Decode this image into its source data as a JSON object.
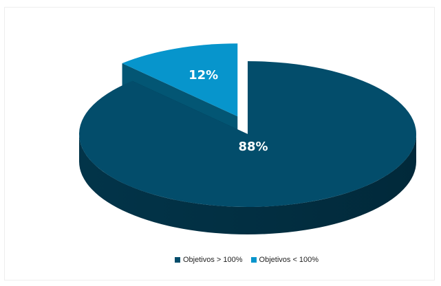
{
  "chart_data": {
    "type": "pie",
    "title": "",
    "categories": [
      "Objetivos > 100%",
      "Objetivos < 100%"
    ],
    "values": [
      88,
      12
    ],
    "labels": [
      "88%",
      "12%"
    ],
    "colors": [
      "#034d6b",
      "#0795cc"
    ],
    "legend_position": "bottom",
    "exploded": [
      false,
      true
    ],
    "style": "3d"
  }
}
